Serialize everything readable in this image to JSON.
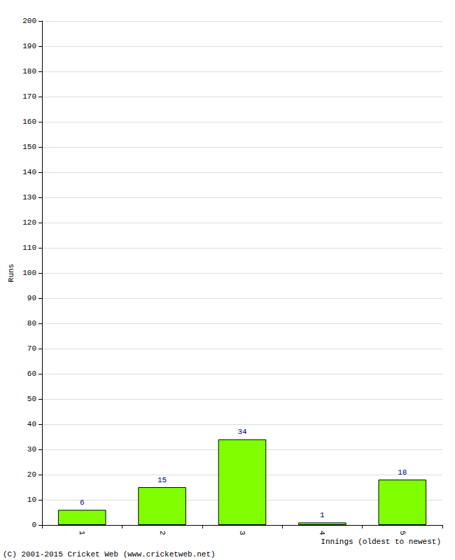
{
  "chart_data": {
    "type": "bar",
    "x_label": "Innings (oldest to newest)",
    "y_label": "Runs",
    "categories": [
      "1",
      "2",
      "3",
      "4",
      "5"
    ],
    "values": [
      6,
      15,
      34,
      1,
      18
    ],
    "color": "#80ff00",
    "ylim": [
      0,
      200
    ],
    "yticks": [
      0,
      10,
      20,
      30,
      40,
      50,
      60,
      70,
      80,
      90,
      100,
      110,
      120,
      130,
      140,
      150,
      160,
      170,
      180,
      190,
      200
    ],
    "grid": true,
    "data_labels": true,
    "annotations": [
      "(C) 2001-2015 Cricket Web (www.cricketweb.net)"
    ]
  }
}
